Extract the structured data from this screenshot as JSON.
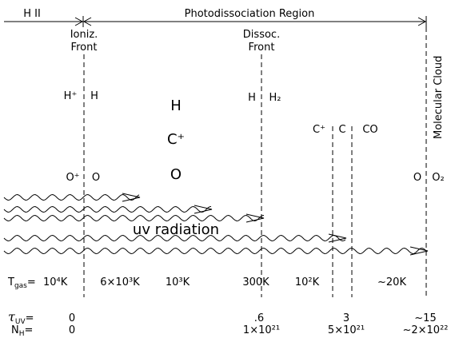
{
  "header": {
    "hii": "H II",
    "pdr": "Photodissociation Region"
  },
  "fronts": {
    "ioniz": [
      "Ioniz.",
      "Front"
    ],
    "dissoc": [
      "Dissoc.",
      "Front"
    ]
  },
  "molecular_cloud": "Molecular Cloud",
  "species": {
    "h_plus": "H⁺",
    "h1": "H",
    "h_mid": "H",
    "c_plus_mid": "C⁺",
    "o_mid": "O",
    "h2_h": "H",
    "h2": "H₂",
    "c_plus": "C⁺",
    "c": "C",
    "co": "CO",
    "o_plus": "O⁺",
    "o1": "O",
    "o2_o": "O",
    "o2": "O₂"
  },
  "uv": "uv radiation",
  "temperature": {
    "label": "T",
    "sub": "gas",
    "eq": "=",
    "values": [
      "10⁴K",
      "6×10³K",
      "10³K",
      "300K",
      "10²K",
      "~20K"
    ]
  },
  "tau": {
    "label": "τ",
    "sub": "UV",
    "eq": "=",
    "values": [
      "0",
      ".6",
      "3",
      "~15"
    ]
  },
  "nh": {
    "label": "N",
    "sub": "H",
    "eq": "=",
    "values": [
      "0",
      "1×10²¹",
      "5×10²¹",
      "~2×10²²"
    ]
  }
}
